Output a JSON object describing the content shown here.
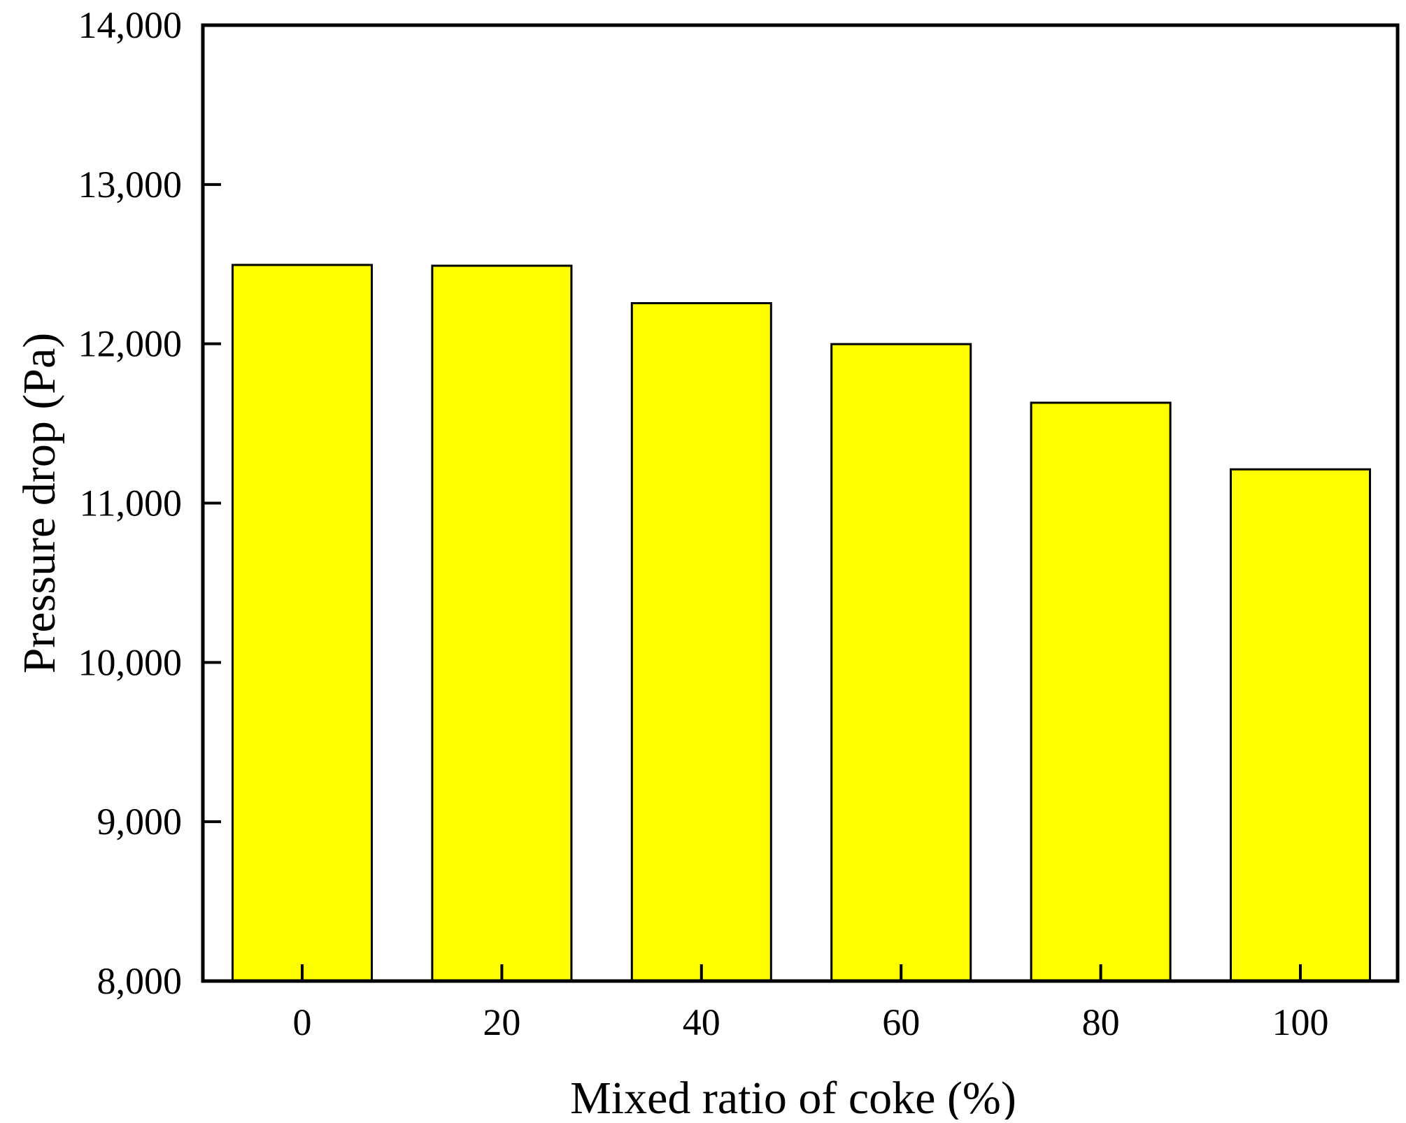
{
  "chart_data": {
    "type": "bar",
    "title": "",
    "xlabel": "Mixed ratio of coke (%)",
    "ylabel": "Pressure drop (Pa)",
    "categories": [
      "0",
      "20",
      "40",
      "60",
      "80",
      "100"
    ],
    "values": [
      12495,
      12490,
      12255,
      11998,
      11630,
      11212
    ],
    "ylim": [
      8000,
      14000
    ],
    "yticks": [
      8000,
      9000,
      10000,
      11000,
      12000,
      13000,
      14000
    ],
    "ytick_labels": [
      "8,000",
      "9,000",
      "10,000",
      "11,000",
      "12,000",
      "13,000",
      "14,000"
    ],
    "grid": false,
    "legend": "none",
    "colors": {
      "bar_fill": "#ffff00",
      "bar_stroke": "#000000",
      "axis": "#000000"
    }
  }
}
